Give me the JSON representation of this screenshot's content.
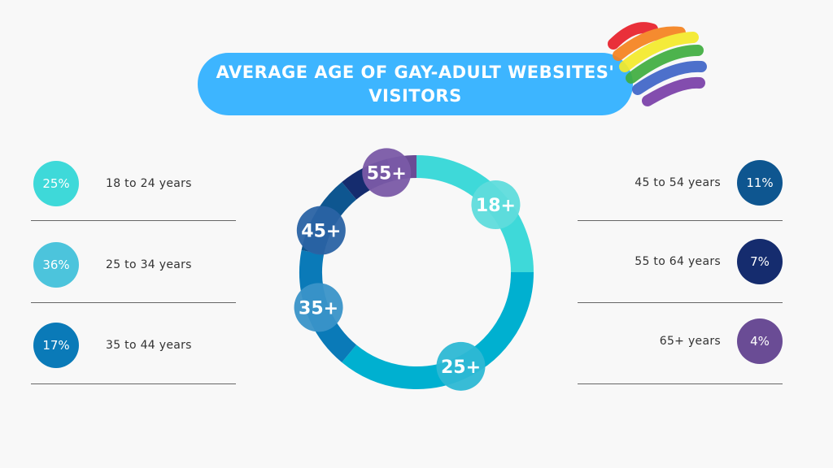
{
  "title": "AVERAGE AGE OF GAY-ADULT WEBSITES' VISITORS",
  "colors": {
    "background": "#f8f8f8",
    "title_pill": "#3db5ff",
    "divider": "#666666"
  },
  "chart_data": {
    "type": "pie",
    "title": "AVERAGE AGE OF GAY-ADULT WEBSITES' VISITORS",
    "categories": [
      "18 to 24 years",
      "25 to 34 years",
      "35 to 44 years",
      "45 to 54 years",
      "55 to 64 years",
      "65+ years"
    ],
    "values": [
      25,
      36,
      17,
      11,
      7,
      4
    ],
    "value_labels": [
      "25%",
      "36%",
      "17%",
      "11%",
      "7%",
      "4%"
    ],
    "ring_labels": [
      "18+",
      "25+",
      "35+",
      "45+",
      "55+"
    ],
    "colors": [
      "#3ed9d9",
      "#00b0d0",
      "#0a7ab8",
      "#0e5690",
      "#152c6e",
      "#6a4c95"
    ],
    "donut": true
  },
  "left_items": [
    {
      "label": "18 to 24 years",
      "value": "25%",
      "color": "#3ed9d9"
    },
    {
      "label": "25 to 34 years",
      "value": "36%",
      "color": "#4cc4dc"
    },
    {
      "label": "35 to 44 years",
      "value": "17%",
      "color": "#0a7ab8"
    }
  ],
  "right_items": [
    {
      "label": "45 to 54 years",
      "value": "11%",
      "color": "#0e5690"
    },
    {
      "label": "55 to 64 years",
      "value": "7%",
      "color": "#152c6e"
    },
    {
      "label": "65+ years",
      "value": "4%",
      "color": "#6a4c95"
    }
  ]
}
